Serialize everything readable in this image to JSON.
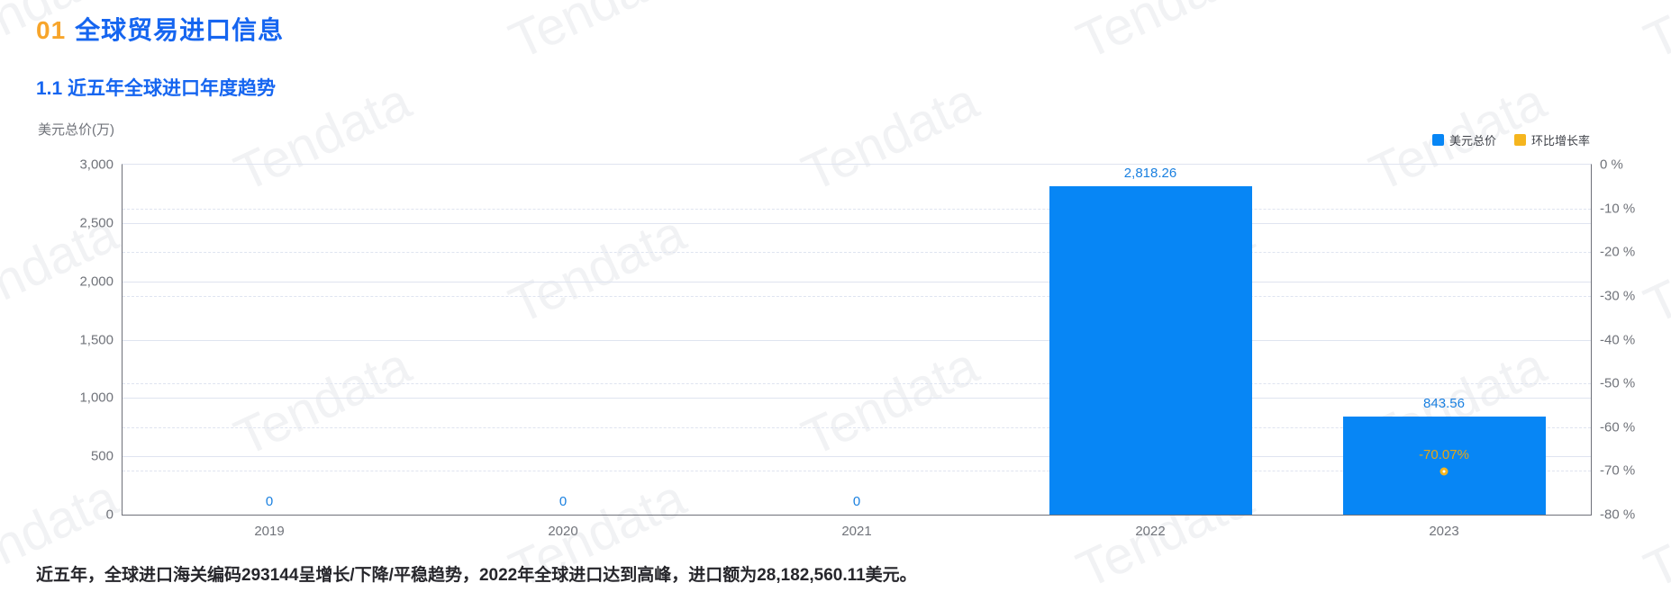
{
  "page": {
    "section_number": "01",
    "section_title": "全球贸易进口信息",
    "subsection_title": "1.1 近五年全球进口年度趋势",
    "summary": "近五年，全球进口海关编码293144呈增长/下降/平稳趋势，2022年全球进口达到高峰，进口额为28,182,560.11美元。",
    "watermark_text": "Tendata"
  },
  "colors": {
    "accent_orange": "#F7A52B",
    "heading_blue": "#1565F0",
    "bar_blue": "#0786F5",
    "bar_label_blue": "#1A80E0",
    "growth_gold": "#F5B51E",
    "growth_label_gold": "#E9A712"
  },
  "chart_data": {
    "type": "bar",
    "title": "近五年全球进口年度趋势",
    "categories": [
      "2019",
      "2020",
      "2021",
      "2022",
      "2023"
    ],
    "series": [
      {
        "name": "美元总价",
        "type": "bar",
        "color": "#0786F5",
        "values": [
          0,
          0,
          0,
          2818.26,
          843.56
        ],
        "value_labels": [
          "0",
          "0",
          "0",
          "2,818.26",
          "843.56"
        ]
      },
      {
        "name": "环比增长率",
        "type": "scatter",
        "color": "#F5B51E",
        "values": [
          null,
          null,
          null,
          null,
          -70.07
        ],
        "value_labels": [
          null,
          null,
          null,
          null,
          "-70.07%"
        ]
      }
    ],
    "left_axis": {
      "name": "美元总价(万)",
      "min": 0,
      "max": 3000,
      "tick_step": 500,
      "tick_labels": [
        "0",
        "500",
        "1,000",
        "1,500",
        "2,000",
        "2,500",
        "3,000"
      ]
    },
    "right_axis": {
      "name": "%",
      "min": -80,
      "max": 0,
      "tick_step": 10,
      "tick_labels": [
        "0 %",
        "-10 %",
        "-20 %",
        "-30 %",
        "-40 %",
        "-50 %",
        "-60 %",
        "-70 %",
        "-80 %"
      ]
    },
    "legend": [
      {
        "label": "美元总价",
        "color": "#0786F5"
      },
      {
        "label": "环比增长率",
        "color": "#F5B51E"
      }
    ],
    "grid": true,
    "legend_position": "top-right"
  }
}
